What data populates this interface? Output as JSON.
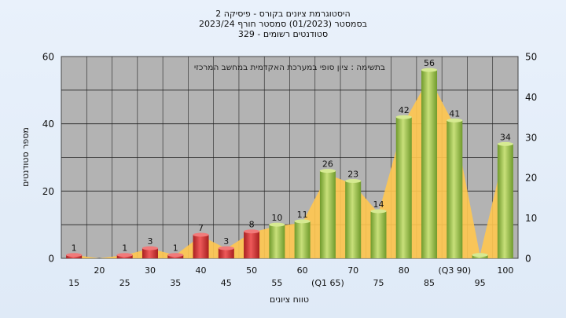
{
  "chart_data": {
    "type": "bar",
    "title_lines": [
      "היסטוגרמת ציונים בקורס - פיסיקה 2",
      "בסמסטר  (01/2023)  סמסטר חורף  2023/24",
      "סטודנטים רשומים - 329"
    ],
    "note": "בתשימה : ציון סופי במערכת האקדמית במחשב המרכזי",
    "xlabel": "טווח ציונים",
    "ylabel": "מספר סטודנטים",
    "ylim": [
      0,
      60
    ],
    "y_ticks": [
      0,
      20,
      40,
      60
    ],
    "y2lim": [
      0,
      50
    ],
    "y2_ticks": [
      0,
      10,
      20,
      30,
      40,
      50
    ],
    "categories": [
      "15",
      "20",
      "25",
      "30",
      "35",
      "40",
      "45",
      "50",
      "55",
      "60",
      "65",
      "70",
      "75",
      "80",
      "85",
      "90",
      "95",
      "100"
    ],
    "x_tick_labels": [
      "15",
      "20",
      "25",
      "30",
      "35",
      "40",
      "45",
      "50",
      "55",
      "60",
      "(Q1 65)",
      "70",
      "75",
      "80",
      "85",
      "(Q3 90)",
      "95",
      "100"
    ],
    "values": [
      1,
      0,
      1,
      3,
      1,
      7,
      3,
      8,
      10,
      11,
      26,
      23,
      14,
      42,
      56,
      41,
      1,
      34
    ],
    "value_labels": [
      "1",
      "",
      "1",
      "3",
      "1",
      "7",
      "3",
      "8",
      "10",
      "11",
      "26",
      "23",
      "14",
      "42",
      "56",
      "41",
      "",
      "34"
    ],
    "colors": {
      "fail": "#d93535",
      "pass": "#9cc24a",
      "area": "#ffc74f",
      "plot_bg": "#b3b3b3"
    },
    "fail_below": 55
  }
}
